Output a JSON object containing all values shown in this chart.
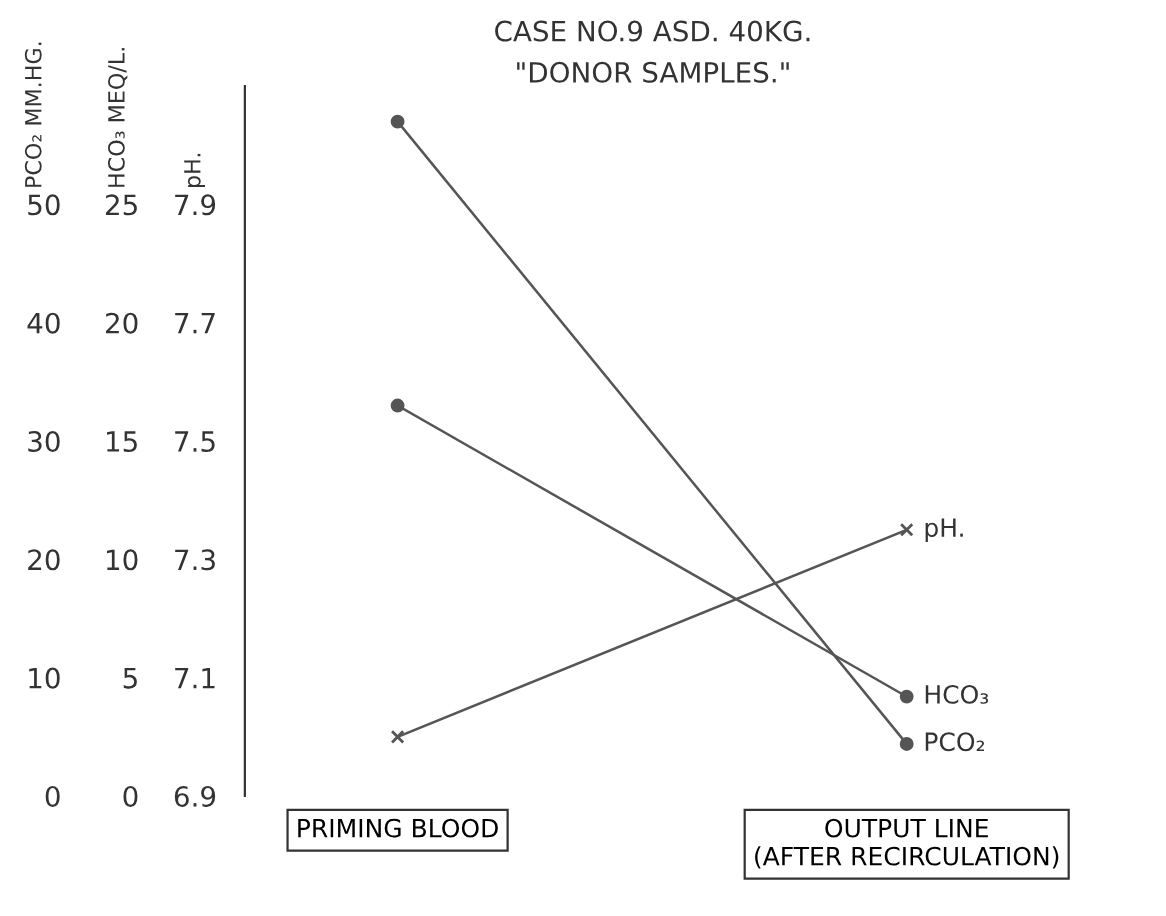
{
  "chart_data": {
    "type": "line",
    "title": "CASE NO.9 ASD. 40KG.",
    "subtitle": "\"DONOR SAMPLES.\"",
    "ylabel": "PCO₂ MM.HG.",
    "y2label": "HCO₃ MEQ/L.",
    "y3label": "pH.",
    "categories": [
      "PRIMING BLOOD",
      "OUTPUT LINE\n(AFTER RECIRCULATION)"
    ],
    "series": [
      {
        "name": "PCO₂",
        "color": "#555555",
        "values": [
          57,
          4.4
        ],
        "marker": "circle"
      },
      {
        "name": "HCO₃",
        "color": "#555555",
        "values": [
          16.5,
          4.2
        ],
        "axis": "y2",
        "marker": "circle"
      },
      {
        "name": "pH.",
        "color": "#555555",
        "values": [
          7.0,
          7.35
        ],
        "axis": "y3",
        "marker": "cross"
      }
    ],
    "ylim": [
      0,
      60
    ],
    "yticks": [
      0,
      10,
      20,
      30,
      40,
      50
    ],
    "y2lim": [
      0,
      30
    ],
    "y2ticks": [
      0,
      5,
      10,
      15,
      20,
      25
    ],
    "y3lim": [
      6.9,
      8.1
    ],
    "y3ticks": [
      6.9,
      7.1,
      7.3,
      7.5,
      7.7,
      7.9
    ],
    "grid": false,
    "legend": "right",
    "line_style": "solid"
  }
}
